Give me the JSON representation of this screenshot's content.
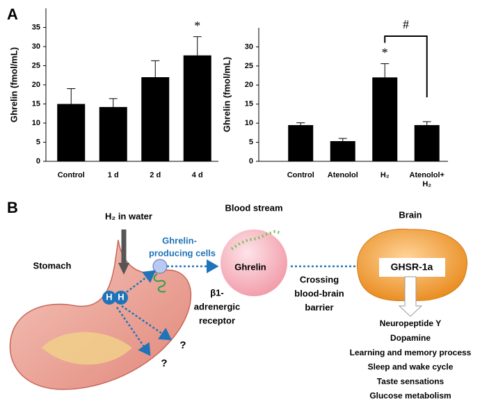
{
  "panel_labels": [
    "A",
    "B"
  ],
  "chart_data": [
    {
      "type": "bar",
      "y_label": "Ghrelin (fmol/mL)",
      "categories": [
        "Control",
        "1 d",
        "2 d",
        "4 d"
      ],
      "values": [
        15,
        14.2,
        22,
        27.7
      ],
      "errors": [
        4,
        2.2,
        4.3,
        4.9
      ],
      "annotations": [
        null,
        null,
        null,
        "*"
      ],
      "color": "#000000",
      "ylim": [
        0,
        40
      ],
      "yticks": [
        0,
        5,
        10,
        15,
        20,
        25,
        30,
        35
      ]
    },
    {
      "type": "bar",
      "y_label": "Ghrelin (fmol/mL)",
      "categories": [
        "Control",
        "Atenolol",
        "H₂",
        "Atenolol+ H₂"
      ],
      "values": [
        9.5,
        5.3,
        22,
        9.5
      ],
      "errors": [
        0.6,
        0.7,
        3.6,
        0.9
      ],
      "annotations": [
        null,
        null,
        "*",
        null
      ],
      "bracket_label": "#",
      "color": "#000000",
      "ylim": [
        0,
        35
      ],
      "yticks": [
        0,
        5,
        10,
        15,
        20,
        25,
        30
      ]
    }
  ],
  "diagram": {
    "h2_in_water": "H₂ in water",
    "ghrelin_cells": [
      "Ghrelin-",
      "producing cells"
    ],
    "stomach": "Stomach",
    "molecule": [
      "H",
      "H"
    ],
    "unknown": [
      "?",
      "?"
    ],
    "blood_stream": "Blood stream",
    "ghrelin": "Ghrelin",
    "receptor": [
      "β1-",
      "adrenergic",
      "receptor"
    ],
    "crossing": [
      "Crossing",
      "blood-brain",
      "barrier"
    ],
    "brain": "Brain",
    "ghsr": "GHSR-1a",
    "effects": [
      "Neuropeptide Y",
      "Dopamine",
      "Learning and memory process",
      "Sleep and wake cycle",
      "Taste sensations",
      "Glucose metabolism"
    ]
  }
}
